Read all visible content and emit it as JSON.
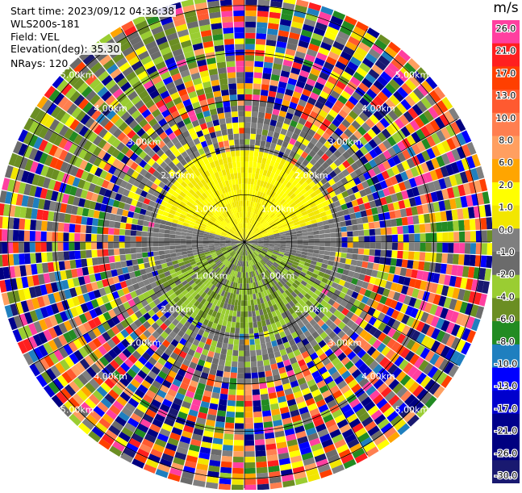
{
  "header": {
    "start_time": "Start time: 2023/09/12 04:36:38",
    "instrument": "WLS200s-181",
    "field": "Field: VEL",
    "elevation": "Elevation(deg): 35.30",
    "nrays": "NRays: 120"
  },
  "chart_data": {
    "type": "heatmap",
    "subtype": "polar-ppi",
    "field": "VEL",
    "unit": "m/s",
    "n_rays": 120,
    "elevation_deg": 35.3,
    "range_rings_km": [
      1.0,
      2.0,
      3.0,
      4.0,
      5.0
    ],
    "ring_labels": [
      "1.00km",
      "2.00km",
      "3.00km",
      "4.00km",
      "5.00km"
    ],
    "colorbar": {
      "ticks": [
        "26.0",
        "21.0",
        "17.0",
        "13.0",
        "10.0",
        "8.0",
        "6.0",
        "2.0",
        "1.0",
        "0.0",
        "-1.0",
        "-2.0",
        "-4.0",
        "-6.0",
        "-8.0",
        "-10.0",
        "-13.0",
        "-17.0",
        "-21.0",
        "-26.0",
        "-30.0"
      ],
      "colors": [
        "#ff3fa0",
        "#ff1f1f",
        "#ff3f00",
        "#ff5a30",
        "#ff7f50",
        "#ff9f60",
        "#ffa500",
        "#ffff00",
        "#f2e600",
        "#7f7f7f",
        "#6b6b6b",
        "#9acd32",
        "#6b8e23",
        "#228b22",
        "#1f7fbf",
        "#0000ff",
        "#0000cd",
        "#00008b",
        "#000080",
        "#191970"
      ]
    }
  }
}
